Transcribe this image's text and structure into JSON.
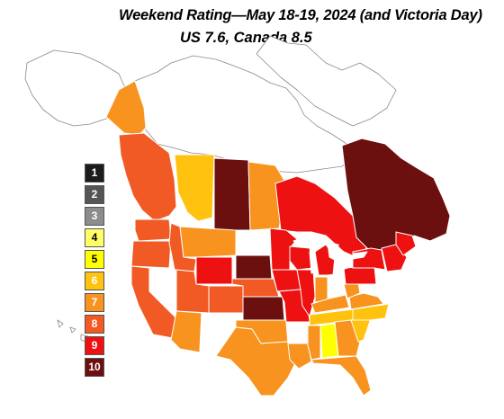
{
  "title": "Weekend Rating—May 18-19, 2024 (and Victoria Day)",
  "subtitle": "US 7.6, Canada 8.5",
  "legend": [
    {
      "label": "1",
      "color": "#1c1c1c",
      "text_color": "#ffffff"
    },
    {
      "label": "2",
      "color": "#555555",
      "text_color": "#ffffff"
    },
    {
      "label": "3",
      "color": "#8c8c8c",
      "text_color": "#ffffff"
    },
    {
      "label": "4",
      "color": "#ffff66",
      "text_color": "#000000"
    },
    {
      "label": "5",
      "color": "#ffff00",
      "text_color": "#000000"
    },
    {
      "label": "6",
      "color": "#ffc20e",
      "text_color": "#ffffff"
    },
    {
      "label": "7",
      "color": "#f7931e",
      "text_color": "#ffffff"
    },
    {
      "label": "8",
      "color": "#f15a24",
      "text_color": "#ffffff"
    },
    {
      "label": "9",
      "color": "#ee1111",
      "text_color": "#ffffff"
    },
    {
      "label": "10",
      "color": "#6b0f0f",
      "text_color": "#ffffff"
    }
  ],
  "regions": [
    {
      "name": "quebec-atlantic",
      "rating": 10
    },
    {
      "name": "ontario",
      "rating": 9
    },
    {
      "name": "manitoba",
      "rating": 7
    },
    {
      "name": "saskatchewan",
      "rating": 10
    },
    {
      "name": "alberta",
      "rating": 6
    },
    {
      "name": "british-columbia",
      "rating": 8
    },
    {
      "name": "yukon",
      "rating": 7
    },
    {
      "name": "northern-canada",
      "rating": null
    },
    {
      "name": "alaska",
      "rating": null
    },
    {
      "name": "washington",
      "rating": 8
    },
    {
      "name": "oregon",
      "rating": 8
    },
    {
      "name": "california",
      "rating": 8
    },
    {
      "name": "nevada",
      "rating": null
    },
    {
      "name": "idaho",
      "rating": 8
    },
    {
      "name": "montana",
      "rating": 7
    },
    {
      "name": "wyoming",
      "rating": 9
    },
    {
      "name": "utah",
      "rating": 8
    },
    {
      "name": "arizona",
      "rating": 7
    },
    {
      "name": "colorado",
      "rating": 8
    },
    {
      "name": "new-mexico",
      "rating": null
    },
    {
      "name": "north-dakota",
      "rating": null
    },
    {
      "name": "south-dakota",
      "rating": 10
    },
    {
      "name": "nebraska",
      "rating": 8
    },
    {
      "name": "kansas",
      "rating": 10
    },
    {
      "name": "oklahoma",
      "rating": 7
    },
    {
      "name": "texas",
      "rating": 7
    },
    {
      "name": "minnesota",
      "rating": 9
    },
    {
      "name": "iowa",
      "rating": 9
    },
    {
      "name": "missouri",
      "rating": 9
    },
    {
      "name": "arkansas",
      "rating": null
    },
    {
      "name": "louisiana",
      "rating": 7
    },
    {
      "name": "wisconsin",
      "rating": 9
    },
    {
      "name": "illinois",
      "rating": 9
    },
    {
      "name": "michigan",
      "rating": 9
    },
    {
      "name": "indiana",
      "rating": 7
    },
    {
      "name": "ohio",
      "rating": null
    },
    {
      "name": "kentucky",
      "rating": 7
    },
    {
      "name": "tennessee",
      "rating": 6
    },
    {
      "name": "mississippi",
      "rating": 7
    },
    {
      "name": "alabama",
      "rating": 5
    },
    {
      "name": "georgia",
      "rating": 7
    },
    {
      "name": "florida",
      "rating": 7
    },
    {
      "name": "south-carolina",
      "rating": 6
    },
    {
      "name": "north-carolina",
      "rating": 6
    },
    {
      "name": "virginia",
      "rating": 7
    },
    {
      "name": "west-virginia",
      "rating": 7
    },
    {
      "name": "pennsylvania",
      "rating": 9
    },
    {
      "name": "new-york",
      "rating": 9
    },
    {
      "name": "new-england",
      "rating": 9
    },
    {
      "name": "maine",
      "rating": 9
    }
  ]
}
